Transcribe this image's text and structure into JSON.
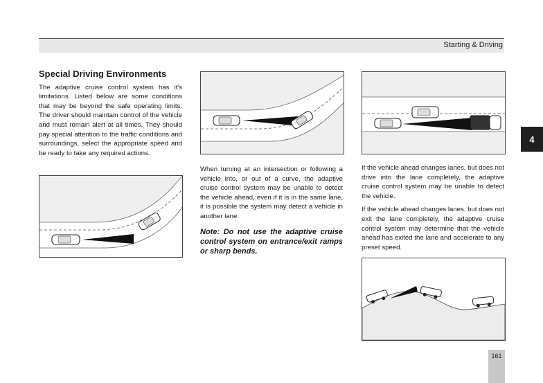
{
  "header": {
    "title": "Starting & Driving"
  },
  "chapter_tab": "4",
  "section": {
    "heading": "Special Driving Environments",
    "intro": "The adaptive cruise control system has it's limitations. Listed below are some conditions that may be beyond the safe operating limits. The driver should maintain control of the vehicle and must remain alert at all times. They should pay special attention to the traffic conditions and surroundings, select the appropriate speed and be ready to take any required actions."
  },
  "column2": {
    "paragraph": "When turning at an intersection or following a vehicle into, or out of a curve, the adaptive cruise control system may be unable to detect the vehicle ahead, even if it is in the same lane, it is possible the system may detect a vehicle in another lane.",
    "note": "Note: Do not use the adaptive cruise control system on entrance/exit ramps or sharp bends."
  },
  "column3": {
    "paragraph1": "If the vehicle ahead changes lanes, but does not drive into the lane completely, the adaptive cruise control system may be unable to detect the vehicle.",
    "paragraph2": "If the vehicle ahead changes lanes, but does not exit the lane completely, the adaptive cruise control system may determine that the vehicle ahead has exited the lane and accelerate to any preset speed."
  },
  "page_number": "161"
}
